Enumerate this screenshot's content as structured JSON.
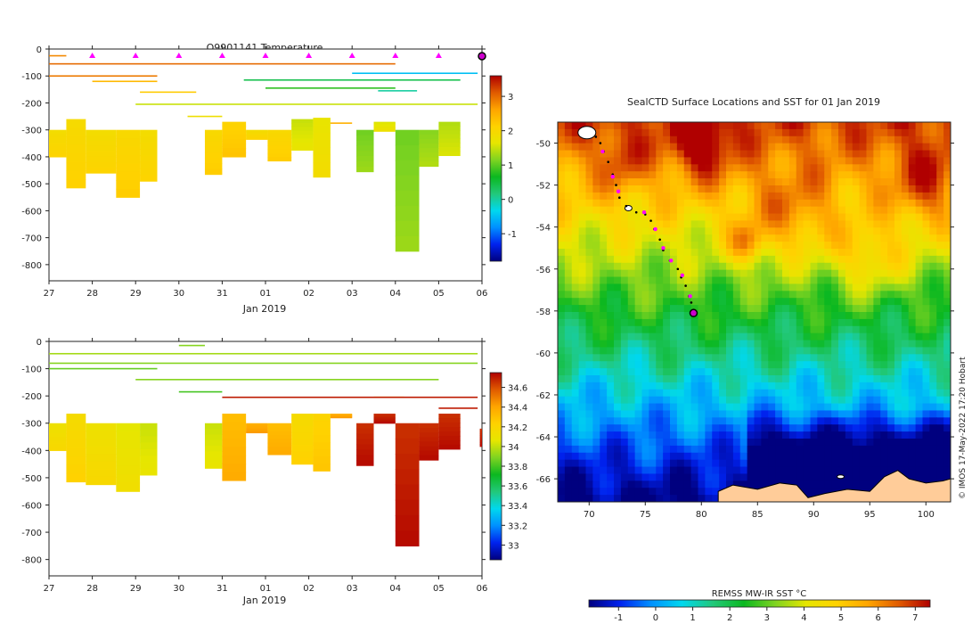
{
  "chart_data": [
    {
      "type": "heatmap",
      "title": "Q9901141  Temperature",
      "xlabel": "Jan 2019",
      "ylabel": "",
      "x_ticks": [
        "27",
        "28",
        "29",
        "30",
        "31",
        "01",
        "02",
        "03",
        "04",
        "05",
        "06"
      ],
      "y_ticks": [
        0,
        -100,
        -200,
        -300,
        -400,
        -500,
        -600,
        -700,
        -800
      ],
      "ylim": [
        -860,
        0
      ],
      "profile_markers_days": [
        1,
        2,
        3,
        4,
        5,
        6,
        7,
        8,
        9
      ],
      "colorbar": {
        "ticks": [
          3,
          2,
          1,
          0,
          -1
        ],
        "min": -1.8,
        "max": 3.6
      },
      "blocks": [
        {
          "x0": 0.0,
          "x1": 0.4,
          "top": -300,
          "bottom": -400,
          "value": 2.0
        },
        {
          "x0": 0.4,
          "x1": 0.85,
          "top": -260,
          "bottom": -515,
          "value": 2.05
        },
        {
          "x0": 0.85,
          "x1": 1.55,
          "top": -300,
          "bottom": -460,
          "value": 2.0
        },
        {
          "x0": 1.55,
          "x1": 2.1,
          "top": -300,
          "bottom": -550,
          "value": 2.1
        },
        {
          "x0": 2.1,
          "x1": 2.5,
          "top": -300,
          "bottom": -490,
          "value": 2.0
        },
        {
          "x0": 3.6,
          "x1": 4.0,
          "top": -300,
          "bottom": -465,
          "value": 2.1
        },
        {
          "x0": 4.0,
          "x1": 4.55,
          "top": -270,
          "bottom": -400,
          "value": 2.2
        },
        {
          "x0": 4.55,
          "x1": 5.05,
          "top": -300,
          "bottom": -335,
          "value": 2.0
        },
        {
          "x0": 5.05,
          "x1": 5.6,
          "top": -300,
          "bottom": -415,
          "value": 2.1
        },
        {
          "x0": 5.6,
          "x1": 6.1,
          "top": -260,
          "bottom": -375,
          "value": 1.6
        },
        {
          "x0": 6.1,
          "x1": 6.5,
          "top": -255,
          "bottom": -475,
          "value": 1.8
        },
        {
          "x0": 7.1,
          "x1": 7.5,
          "top": -300,
          "bottom": -455,
          "value": 1.2
        },
        {
          "x0": 7.5,
          "x1": 8.0,
          "top": -270,
          "bottom": -305,
          "value": 1.7
        },
        {
          "x0": 8.0,
          "x1": 8.55,
          "top": -300,
          "bottom": -750,
          "value": 1.2
        },
        {
          "x0": 8.55,
          "x1": 9.0,
          "top": -300,
          "bottom": -435,
          "value": 1.3
        },
        {
          "x0": 9.0,
          "x1": 9.5,
          "top": -270,
          "bottom": -395,
          "value": 1.5
        }
      ],
      "lines": [
        {
          "x0": 0.0,
          "x1": 0.4,
          "depth": -25,
          "value": 2.8
        },
        {
          "x0": 0.0,
          "x1": 8.0,
          "depth": -55,
          "value": 3.0
        },
        {
          "x0": 0.0,
          "x1": 2.5,
          "depth": -100,
          "value": 2.9
        },
        {
          "x0": 1.0,
          "x1": 2.5,
          "depth": -120,
          "value": 2.4
        },
        {
          "x0": 2.1,
          "x1": 3.4,
          "depth": -160,
          "value": 2.2
        },
        {
          "x0": 2.0,
          "x1": 9.9,
          "depth": -205,
          "value": 1.5
        },
        {
          "x0": 3.2,
          "x1": 4.0,
          "depth": -250,
          "value": 1.8
        },
        {
          "x0": 6.5,
          "x1": 7.0,
          "depth": -275,
          "value": 2.5
        },
        {
          "x0": 4.5,
          "x1": 9.5,
          "depth": -115,
          "value": 0.4
        },
        {
          "x0": 7.0,
          "x1": 9.9,
          "depth": -90,
          "value": -0.5
        },
        {
          "x0": 5.0,
          "x1": 8.0,
          "depth": -145,
          "value": 0.8
        },
        {
          "x0": 7.6,
          "x1": 8.5,
          "depth": -155,
          "value": 0.0
        }
      ]
    },
    {
      "type": "heatmap",
      "title": "",
      "xlabel": "Jan 2019",
      "ylabel": "",
      "x_ticks": [
        "27",
        "28",
        "29",
        "30",
        "31",
        "01",
        "02",
        "03",
        "04",
        "05",
        "06"
      ],
      "y_ticks": [
        0,
        -100,
        -200,
        -300,
        -400,
        -500,
        -600,
        -700,
        -800
      ],
      "ylim": [
        -860,
        0
      ],
      "colorbar": {
        "ticks": [
          34.6,
          34.4,
          34.2,
          34,
          33.8,
          33.6,
          33.4,
          33.2,
          33
        ],
        "min": 32.85,
        "max": 34.75
      },
      "blocks": [
        {
          "x0": 0.0,
          "x1": 0.4,
          "top": -300,
          "bottom": -400,
          "value": 34.15
        },
        {
          "x0": 0.4,
          "x1": 0.85,
          "top": -265,
          "bottom": -515,
          "value": 34.2
        },
        {
          "x0": 0.85,
          "x1": 1.55,
          "top": -300,
          "bottom": -525,
          "value": 34.15
        },
        {
          "x0": 1.55,
          "x1": 2.1,
          "top": -300,
          "bottom": -550,
          "value": 34.1
        },
        {
          "x0": 2.1,
          "x1": 2.5,
          "top": -300,
          "bottom": -490,
          "value": 34.05
        },
        {
          "x0": 3.6,
          "x1": 4.0,
          "top": -300,
          "bottom": -465,
          "value": 34.05
        },
        {
          "x0": 4.0,
          "x1": 4.55,
          "top": -265,
          "bottom": -510,
          "value": 34.35
        },
        {
          "x0": 4.55,
          "x1": 5.05,
          "top": -300,
          "bottom": -335,
          "value": 34.4
        },
        {
          "x0": 5.05,
          "x1": 5.6,
          "top": -300,
          "bottom": -415,
          "value": 34.35
        },
        {
          "x0": 5.6,
          "x1": 6.1,
          "top": -265,
          "bottom": -450,
          "value": 34.2
        },
        {
          "x0": 6.1,
          "x1": 6.5,
          "top": -265,
          "bottom": -475,
          "value": 34.25
        },
        {
          "x0": 6.5,
          "x1": 7.0,
          "top": -265,
          "bottom": -280,
          "value": 34.4
        },
        {
          "x0": 7.1,
          "x1": 7.5,
          "top": -300,
          "bottom": -455,
          "value": 34.7
        },
        {
          "x0": 7.5,
          "x1": 8.0,
          "top": -265,
          "bottom": -300,
          "value": 34.7
        },
        {
          "x0": 8.0,
          "x1": 8.55,
          "top": -300,
          "bottom": -750,
          "value": 34.7
        },
        {
          "x0": 8.55,
          "x1": 9.0,
          "top": -300,
          "bottom": -435,
          "value": 34.7
        },
        {
          "x0": 9.0,
          "x1": 9.5,
          "top": -265,
          "bottom": -395,
          "value": 34.7
        },
        {
          "x0": 9.95,
          "x1": 10.05,
          "top": -320,
          "bottom": -385,
          "value": 34.7
        }
      ],
      "lines": [
        {
          "x0": 3.0,
          "x1": 3.6,
          "depth": -15,
          "value": 33.9
        },
        {
          "x0": 0.0,
          "x1": 9.9,
          "depth": -45,
          "value": 33.95
        },
        {
          "x0": 0.0,
          "x1": 9.9,
          "depth": -80,
          "value": 33.9
        },
        {
          "x0": 0.0,
          "x1": 2.5,
          "depth": -100,
          "value": 33.85
        },
        {
          "x0": 2.0,
          "x1": 9.0,
          "depth": -140,
          "value": 33.9
        },
        {
          "x0": 7.5,
          "x1": 8.2,
          "depth": -205,
          "value": 34.3
        },
        {
          "x0": 3.0,
          "x1": 4.0,
          "depth": -185,
          "value": 33.8
        },
        {
          "x0": 4.0,
          "x1": 9.9,
          "depth": -205,
          "value": 34.7
        },
        {
          "x0": 9.0,
          "x1": 9.9,
          "depth": -245,
          "value": 34.7
        }
      ]
    },
    {
      "type": "heatmap",
      "title": "SealCTD Surface Locations and SST for 01 Jan 2019",
      "xlabel": "",
      "ylabel": "",
      "x_ticks": [
        70,
        75,
        80,
        85,
        90,
        95,
        100
      ],
      "y_ticks": [
        -50,
        -52,
        -54,
        -56,
        -58,
        -60,
        -62,
        -64,
        -66
      ],
      "xlim": [
        67.2,
        102.2
      ],
      "ylim": [
        -67.1,
        -49.0
      ],
      "colorbar": {
        "label": "REMSS MW-IR SST °C",
        "ticks": [
          -1,
          0,
          1,
          2,
          3,
          4,
          5,
          6,
          7
        ],
        "min": -1.8,
        "max": 7.4
      },
      "track": [
        {
          "lon": 70.6,
          "lat": -49.7
        },
        {
          "lon": 71.0,
          "lat": -50.0
        },
        {
          "lon": 71.3,
          "lat": -50.4
        },
        {
          "lon": 71.7,
          "lat": -50.9
        },
        {
          "lon": 72.1,
          "lat": -51.5
        },
        {
          "lon": 72.4,
          "lat": -52.0
        },
        {
          "lon": 72.7,
          "lat": -52.6
        },
        {
          "lon": 73.3,
          "lat": -53.0
        },
        {
          "lon": 74.2,
          "lat": -53.3
        },
        {
          "lon": 75.0,
          "lat": -53.4
        },
        {
          "lon": 75.5,
          "lat": -53.7
        },
        {
          "lon": 75.8,
          "lat": -54.1
        },
        {
          "lon": 76.3,
          "lat": -54.6
        },
        {
          "lon": 76.6,
          "lat": -55.1
        },
        {
          "lon": 77.2,
          "lat": -55.6
        },
        {
          "lon": 77.9,
          "lat": -56.0
        },
        {
          "lon": 78.2,
          "lat": -56.4
        },
        {
          "lon": 78.6,
          "lat": -56.8
        },
        {
          "lon": 78.9,
          "lat": -57.3
        },
        {
          "lon": 79.1,
          "lat": -57.6
        }
      ],
      "highlight": [
        {
          "lon": 71.2,
          "lat": -50.4
        },
        {
          "lon": 72.1,
          "lat": -51.6
        },
        {
          "lon": 72.6,
          "lat": -52.3
        },
        {
          "lon": 74.9,
          "lat": -53.3
        },
        {
          "lon": 75.9,
          "lat": -54.1
        },
        {
          "lon": 76.6,
          "lat": -55.0
        },
        {
          "lon": 77.3,
          "lat": -55.6
        },
        {
          "lon": 78.3,
          "lat": -56.3
        },
        {
          "lon": 79.0,
          "lat": -57.3
        }
      ],
      "current_position": {
        "lon": 79.3,
        "lat": -58.1
      },
      "credit": "© IMOS 17-May-2022 17:20 Hobart"
    }
  ]
}
